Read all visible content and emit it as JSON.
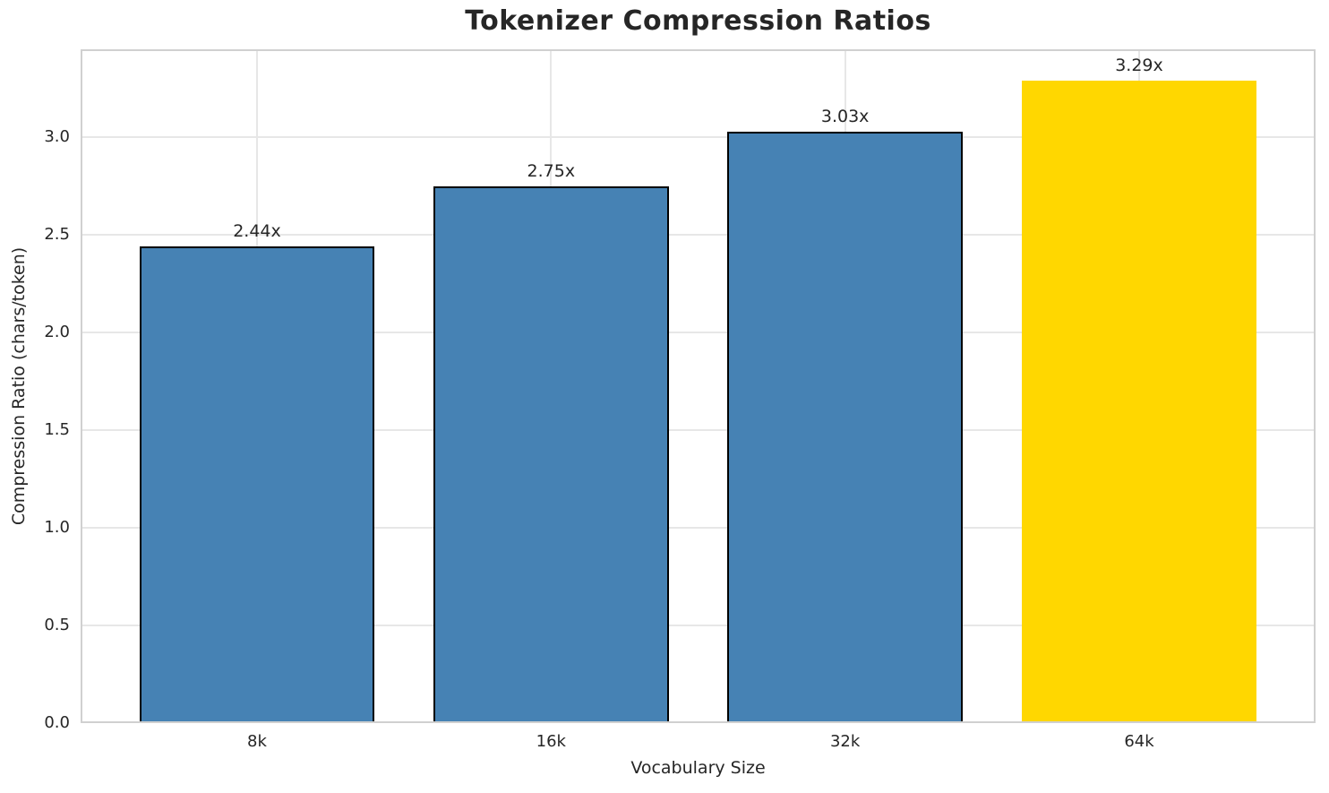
{
  "chart_data": {
    "type": "bar",
    "title": "Tokenizer Compression Ratios",
    "xlabel": "Vocabulary Size",
    "ylabel": "Compression Ratio (chars/token)",
    "categories": [
      "8k",
      "16k",
      "32k",
      "64k"
    ],
    "values": [
      2.44,
      2.75,
      3.03,
      3.29
    ],
    "bar_labels": [
      "2.44x",
      "2.75x",
      "3.03x",
      "3.29x"
    ],
    "ylim": [
      0,
      3.45
    ],
    "xlim": [
      -0.6,
      3.6
    ],
    "yticks": [
      0,
      0.5,
      1,
      1.5,
      2,
      2.5,
      3
    ],
    "ytick_labels": [
      "0.0",
      "0.5",
      "1.0",
      "1.5",
      "2.0",
      "2.5",
      "3.0"
    ],
    "bar_width": 0.8,
    "grid": true,
    "legend": false,
    "bar_colors": [
      "#4682B4",
      "#4682B4",
      "#4682B4",
      "#FFD700"
    ],
    "bar_edge_colors": [
      "#000000",
      "#000000",
      "#000000",
      "none"
    ],
    "highlight_index": 3
  },
  "colors": {
    "bar_blue": "#4682B4",
    "bar_gold": "#FFD700",
    "bar_edge": "#000000",
    "grid": "#e7e7e7",
    "spine": "#d0d0d0",
    "text": "#262626"
  }
}
